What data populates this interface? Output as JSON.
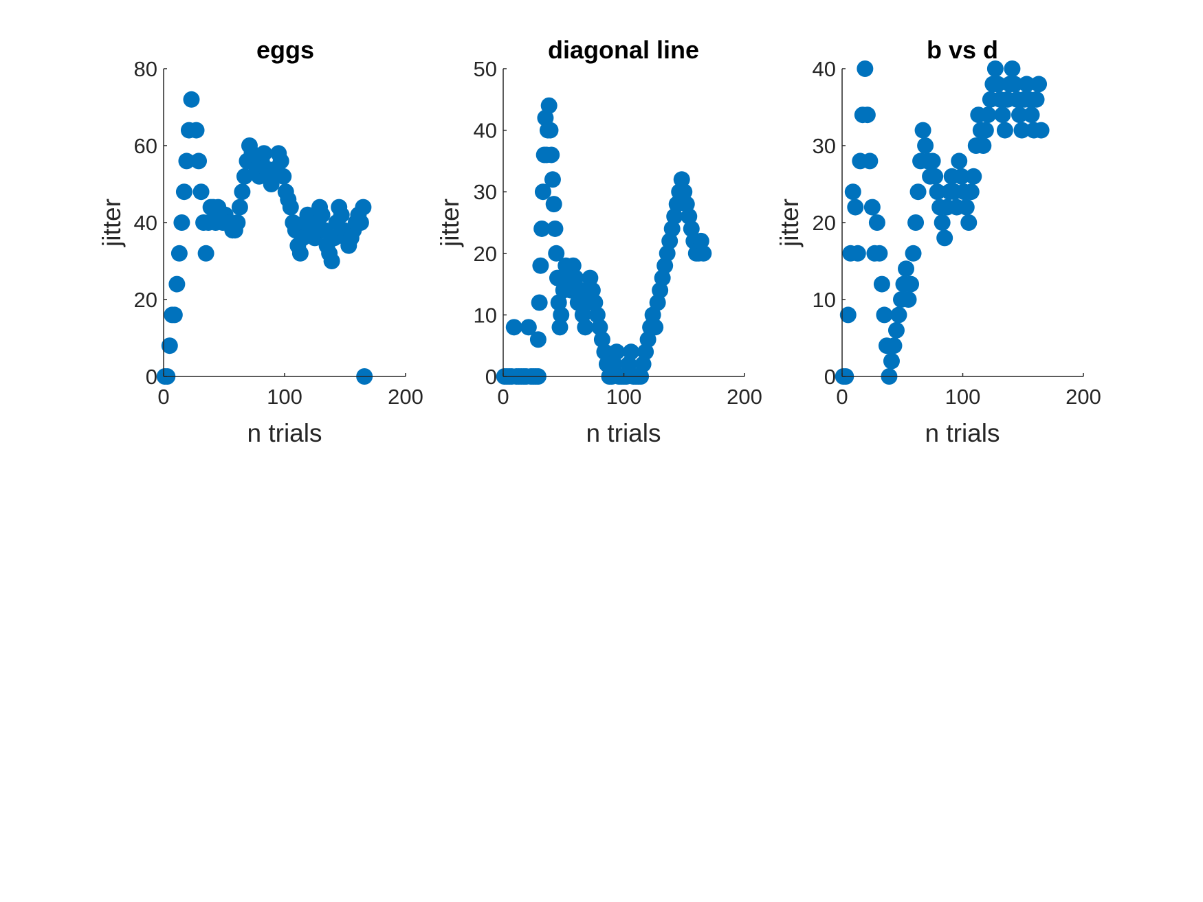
{
  "colors": {
    "marker": "#0072BD",
    "axis": "#262626",
    "title": "#000000"
  },
  "chart_data": [
    {
      "type": "scatter",
      "title": "eggs",
      "xlabel": "n trials",
      "ylabel": "jitter",
      "xlim": [
        0,
        200
      ],
      "ylim": [
        0,
        80
      ],
      "xticks": [
        "0",
        "100",
        "200"
      ],
      "yticks": [
        "0",
        "20",
        "40",
        "60",
        "80"
      ],
      "grid": false,
      "series": [
        {
          "x": [
            1,
            3,
            5,
            7,
            9,
            11,
            13,
            15,
            17,
            19,
            21,
            23,
            27,
            29,
            31,
            33,
            35,
            37,
            39,
            41,
            43,
            45,
            47,
            49,
            51,
            53,
            55,
            57,
            59,
            61,
            63,
            65,
            67,
            69,
            71,
            73,
            75,
            77,
            79,
            81,
            83,
            85,
            87,
            89,
            91,
            93,
            95,
            97,
            99,
            101,
            103,
            105,
            107,
            109,
            111,
            113,
            115,
            117,
            119,
            121,
            123,
            125,
            127,
            129,
            131,
            133,
            135,
            137,
            139,
            141,
            143,
            145,
            147,
            149,
            151,
            153,
            155,
            157,
            159,
            161,
            163,
            165,
            166
          ],
          "y": [
            0,
            0,
            8,
            16,
            16,
            24,
            32,
            40,
            48,
            56,
            64,
            72,
            64,
            56,
            48,
            40,
            32,
            40,
            44,
            44,
            40,
            44,
            42,
            40,
            42,
            40,
            40,
            38,
            38,
            40,
            44,
            48,
            52,
            56,
            60,
            58,
            56,
            54,
            52,
            56,
            58,
            54,
            52,
            50,
            52,
            54,
            58,
            56,
            52,
            48,
            46,
            44,
            40,
            38,
            34,
            32,
            36,
            40,
            42,
            40,
            38,
            36,
            40,
            44,
            42,
            38,
            34,
            32,
            30,
            36,
            40,
            44,
            42,
            38,
            36,
            34,
            36,
            38,
            40,
            42,
            40,
            44,
            0
          ]
        }
      ]
    },
    {
      "type": "scatter",
      "title": "diagonal line",
      "xlabel": "n trials",
      "ylabel": "jitter",
      "xlim": [
        0,
        200
      ],
      "ylim": [
        0,
        50
      ],
      "xticks": [
        "0",
        "100",
        "200"
      ],
      "yticks": [
        "0",
        "10",
        "20",
        "30",
        "40",
        "50"
      ],
      "grid": false,
      "series": [
        {
          "x": [
            1,
            3,
            5,
            7,
            9,
            11,
            13,
            15,
            17,
            19,
            21,
            23,
            25,
            27,
            29,
            29,
            30,
            31,
            32,
            33,
            34,
            35,
            36,
            37,
            38,
            39,
            40,
            41,
            42,
            43,
            44,
            45,
            46,
            47,
            48,
            50,
            52,
            54,
            56,
            58,
            60,
            62,
            64,
            66,
            68,
            70,
            72,
            74,
            76,
            78,
            80,
            82,
            84,
            86,
            88,
            90,
            92,
            94,
            96,
            98,
            100,
            102,
            104,
            106,
            108,
            110,
            112,
            114,
            116,
            118,
            120,
            122,
            124,
            126,
            128,
            130,
            132,
            134,
            136,
            138,
            140,
            142,
            144,
            146,
            148,
            150,
            152,
            154,
            156,
            158,
            160,
            162,
            164,
            166
          ],
          "y": [
            0,
            0,
            0,
            0,
            8,
            0,
            0,
            0,
            0,
            0,
            8,
            0,
            0,
            0,
            0,
            6,
            12,
            18,
            24,
            30,
            36,
            42,
            36,
            40,
            44,
            40,
            36,
            32,
            28,
            24,
            20,
            16,
            12,
            8,
            10,
            14,
            18,
            16,
            14,
            18,
            16,
            12,
            14,
            10,
            8,
            12,
            16,
            14,
            12,
            10,
            8,
            6,
            4,
            2,
            0,
            0,
            2,
            4,
            0,
            0,
            0,
            0,
            2,
            4,
            0,
            0,
            0,
            0,
            2,
            4,
            6,
            8,
            10,
            8,
            12,
            14,
            16,
            18,
            20,
            22,
            24,
            26,
            28,
            30,
            32,
            30,
            28,
            26,
            24,
            22,
            20,
            20,
            22,
            20
          ],
          "x_adjusted": false
        }
      ]
    },
    {
      "type": "scatter",
      "title": "b vs d",
      "xlabel": "n trials",
      "ylabel": "jitter",
      "xlim": [
        0,
        200
      ],
      "ylim": [
        0,
        40
      ],
      "xticks": [
        "0",
        "100",
        "200"
      ],
      "yticks": [
        "0",
        "10",
        "20",
        "30",
        "40"
      ],
      "grid": false,
      "series": [
        {
          "x": [
            1,
            3,
            5,
            7,
            9,
            11,
            13,
            15,
            17,
            19,
            21,
            23,
            25,
            27,
            29,
            31,
            33,
            35,
            37,
            39,
            41,
            43,
            45,
            47,
            49,
            51,
            53,
            55,
            57,
            59,
            61,
            63,
            65,
            67,
            69,
            71,
            73,
            75,
            77,
            79,
            81,
            83,
            85,
            87,
            89,
            91,
            93,
            95,
            97,
            99,
            101,
            103,
            105,
            107,
            109,
            111,
            113,
            115,
            117,
            119,
            121,
            123,
            125,
            127,
            129,
            131,
            133,
            135,
            137,
            139,
            141,
            143,
            145,
            147,
            149,
            151,
            153,
            155,
            157,
            159,
            161,
            163,
            165
          ],
          "y": [
            0,
            0,
            8,
            16,
            24,
            22,
            16,
            28,
            34,
            40,
            34,
            28,
            22,
            16,
            20,
            16,
            12,
            8,
            4,
            0,
            2,
            4,
            6,
            8,
            10,
            12,
            14,
            10,
            12,
            16,
            20,
            24,
            28,
            32,
            30,
            28,
            26,
            28,
            26,
            24,
            22,
            20,
            18,
            22,
            24,
            26,
            24,
            22,
            28,
            26,
            24,
            22,
            20,
            24,
            26,
            30,
            34,
            32,
            30,
            32,
            34,
            36,
            38,
            40,
            38,
            36,
            34,
            32,
            36,
            38,
            40,
            38,
            36,
            34,
            32,
            36,
            38,
            36,
            34,
            32,
            36,
            38,
            32
          ],
          "x_adjusted": false
        }
      ]
    }
  ]
}
